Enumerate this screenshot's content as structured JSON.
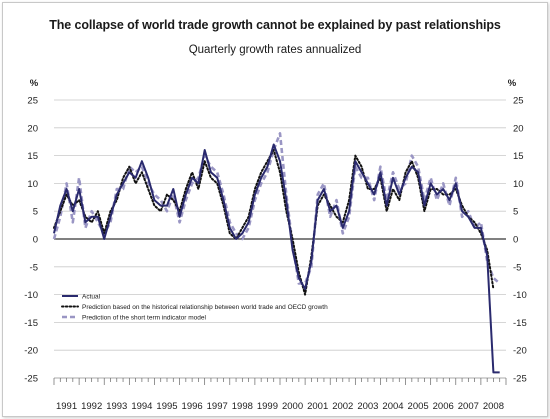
{
  "chart_data": {
    "type": "line",
    "title": "The collapse of world trade growth cannot be explained by past relationships",
    "subtitle": "Quarterly growth rates annualized",
    "ylabel_left": "%",
    "ylabel_right": "%",
    "ylim": [
      -25,
      25
    ],
    "yticks": [
      25,
      20,
      15,
      10,
      5,
      0,
      -5,
      -10,
      -15,
      -20,
      -25
    ],
    "xlim": [
      1991.0,
      2009.0
    ],
    "year_labels": [
      "1991",
      "1992",
      "1993",
      "1994",
      "1995",
      "1996",
      "1997",
      "1998",
      "1999",
      "2000",
      "2001",
      "2002",
      "2003",
      "2004",
      "2005",
      "2006",
      "2007",
      "2008"
    ],
    "grid": true,
    "legend_position": "bottom-left",
    "series": [
      {
        "name": "Actual",
        "color": "#2a2a6e",
        "style": "solid",
        "x": [
          1991.0,
          1991.25,
          1991.5,
          1991.75,
          1992.0,
          1992.25,
          1992.5,
          1992.75,
          1993.0,
          1993.25,
          1993.5,
          1993.75,
          1994.0,
          1994.25,
          1994.5,
          1994.75,
          1995.0,
          1995.25,
          1995.5,
          1995.75,
          1996.0,
          1996.25,
          1996.5,
          1996.75,
          1997.0,
          1997.25,
          1997.5,
          1997.75,
          1998.0,
          1998.25,
          1998.5,
          1998.75,
          1999.0,
          1999.25,
          1999.5,
          1999.75,
          2000.0,
          2000.25,
          2000.5,
          2000.75,
          2001.0,
          2001.25,
          2001.5,
          2001.75,
          2002.0,
          2002.25,
          2002.5,
          2002.75,
          2003.0,
          2003.25,
          2003.5,
          2003.75,
          2004.0,
          2004.25,
          2004.5,
          2004.75,
          2005.0,
          2005.25,
          2005.5,
          2005.75,
          2006.0,
          2006.25,
          2006.5,
          2006.75,
          2007.0,
          2007.25,
          2007.5,
          2007.75,
          2008.0,
          2008.25,
          2008.5,
          2008.75
        ],
        "values": [
          1,
          6,
          9,
          5,
          9,
          3,
          4,
          4,
          0,
          4,
          8,
          10,
          12,
          11,
          14,
          11,
          7,
          6,
          6,
          9,
          4,
          8,
          11,
          10,
          16,
          12,
          11,
          7,
          2,
          0,
          1,
          3,
          8,
          11,
          13,
          17,
          14,
          7,
          -2,
          -7,
          -9,
          -4,
          7,
          9,
          5,
          6,
          2,
          5,
          14,
          12,
          10,
          8,
          12,
          6,
          11,
          8,
          11,
          13,
          12,
          6,
          10,
          8,
          9,
          7,
          10,
          5,
          4,
          2,
          2,
          -3,
          -24,
          -24
        ]
      },
      {
        "name": "Prediction based on the historical relationship between world trade and OECD growth",
        "color": "#111111",
        "style": "dotted",
        "x": [
          1991.0,
          1991.25,
          1991.5,
          1991.75,
          1992.0,
          1992.25,
          1992.5,
          1992.75,
          1993.0,
          1993.25,
          1993.5,
          1993.75,
          1994.0,
          1994.25,
          1994.5,
          1994.75,
          1995.0,
          1995.25,
          1995.5,
          1995.75,
          1996.0,
          1996.25,
          1996.5,
          1996.75,
          1997.0,
          1997.25,
          1997.5,
          1997.75,
          1998.0,
          1998.25,
          1998.5,
          1998.75,
          1999.0,
          1999.25,
          1999.5,
          1999.75,
          2000.0,
          2000.25,
          2000.5,
          2000.75,
          2001.0,
          2001.25,
          2001.5,
          2001.75,
          2002.0,
          2002.25,
          2002.5,
          2002.75,
          2003.0,
          2003.25,
          2003.5,
          2003.75,
          2004.0,
          2004.25,
          2004.5,
          2004.75,
          2005.0,
          2005.25,
          2005.5,
          2005.75,
          2006.0,
          2006.25,
          2006.5,
          2006.75,
          2007.0,
          2007.25,
          2007.5,
          2007.75,
          2008.0,
          2008.25,
          2008.5
        ],
        "values": [
          2,
          5,
          8,
          6,
          7,
          4,
          3,
          5,
          1,
          5,
          7,
          11,
          13,
          10,
          12,
          9,
          6,
          5,
          8,
          7,
          5,
          9,
          12,
          9,
          14,
          11,
          10,
          6,
          1,
          0,
          2,
          4,
          9,
          12,
          14,
          16,
          12,
          5,
          0,
          -6,
          -10,
          -3,
          6,
          8,
          6,
          4,
          3,
          7,
          15,
          13,
          9,
          9,
          11,
          5,
          9,
          7,
          12,
          14,
          11,
          5,
          9,
          9,
          8,
          8,
          9,
          6,
          4,
          3,
          1,
          -2,
          -9
        ]
      },
      {
        "name": "Prediction of the short term indicator model",
        "color": "#9a96c4",
        "style": "dashed",
        "x": [
          1991.0,
          1991.25,
          1991.5,
          1991.75,
          1992.0,
          1992.25,
          1992.5,
          1992.75,
          1993.0,
          1993.25,
          1993.5,
          1993.75,
          1994.0,
          1994.25,
          1994.5,
          1994.75,
          1995.0,
          1995.25,
          1995.5,
          1995.75,
          1996.0,
          1996.25,
          1996.5,
          1996.75,
          1997.0,
          1997.25,
          1997.5,
          1997.75,
          1998.0,
          1998.25,
          1998.5,
          1998.75,
          1999.0,
          1999.25,
          1999.5,
          1999.75,
          2000.0,
          2000.25,
          2000.5,
          2000.75,
          2001.0,
          2001.25,
          2001.5,
          2001.75,
          2002.0,
          2002.25,
          2002.5,
          2002.75,
          2003.0,
          2003.25,
          2003.5,
          2003.75,
          2004.0,
          2004.25,
          2004.5,
          2004.75,
          2005.0,
          2005.25,
          2005.5,
          2005.75,
          2006.0,
          2006.25,
          2006.5,
          2006.75,
          2007.0,
          2007.25,
          2007.5,
          2007.75,
          2008.0,
          2008.25,
          2008.5,
          2008.75
        ],
        "values": [
          0,
          4,
          10,
          3,
          11,
          2,
          5,
          3,
          1,
          3,
          9,
          9,
          13,
          12,
          13,
          10,
          8,
          7,
          5,
          8,
          3,
          7,
          10,
          11,
          15,
          13,
          12,
          8,
          3,
          1,
          0,
          2,
          7,
          10,
          12,
          16,
          19,
          8,
          -1,
          -8,
          -8,
          -5,
          8,
          10,
          4,
          7,
          1,
          4,
          13,
          11,
          11,
          7,
          13,
          7,
          12,
          9,
          10,
          15,
          13,
          7,
          11,
          7,
          10,
          6,
          11,
          4,
          5,
          2,
          3,
          -4,
          -7,
          -8
        ]
      }
    ]
  }
}
